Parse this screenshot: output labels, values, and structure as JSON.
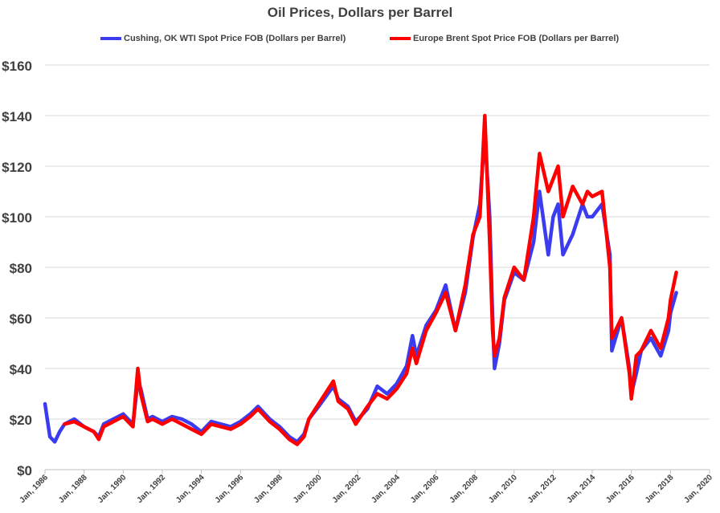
{
  "chart_data": {
    "type": "line",
    "title": "Oil Prices, Dollars per Barrel",
    "xlabel": "",
    "ylabel": "",
    "ylim": [
      0,
      160
    ],
    "y_ticks": [
      0,
      20,
      40,
      60,
      80,
      100,
      120,
      140,
      160
    ],
    "y_tick_labels": [
      "$0",
      "$20",
      "$40",
      "$60",
      "$80",
      "$100",
      "$120",
      "$140",
      "$160"
    ],
    "xlim": [
      1986,
      2020
    ],
    "x_ticks": [
      1986,
      1988,
      1990,
      1992,
      1994,
      1996,
      1998,
      2000,
      2002,
      2004,
      2006,
      2008,
      2010,
      2012,
      2014,
      2016,
      2018,
      2020
    ],
    "x_tick_labels": [
      "Jan, 1986",
      "Jan, 1988",
      "Jan, 1990",
      "Jan, 1992",
      "Jan, 1994",
      "Jan, 1996",
      "Jan, 1998",
      "Jan, 2000",
      "Jan, 2002",
      "Jan, 2004",
      "Jan, 2006",
      "Jan, 2008",
      "Jan, 2010",
      "Jan, 2012",
      "Jan, 2014",
      "Jan, 2016",
      "Jan, 2018",
      "Jan, 2020"
    ],
    "grid": "horizontal",
    "legend_position": "top",
    "series": [
      {
        "name": "Cushing, OK WTI Spot Price FOB (Dollars per Barrel)",
        "color": "#3b3bf0",
        "x": [
          1986.0,
          1986.25,
          1986.5,
          1986.75,
          1987.0,
          1987.5,
          1988.0,
          1988.5,
          1988.75,
          1989.0,
          1989.5,
          1990.0,
          1990.5,
          1990.75,
          1990.9,
          1991.25,
          1991.5,
          1992.0,
          1992.5,
          1993.0,
          1993.5,
          1994.0,
          1994.5,
          1995.0,
          1995.5,
          1996.0,
          1996.5,
          1996.9,
          1997.5,
          1998.0,
          1998.5,
          1998.9,
          1999.25,
          1999.5,
          2000.0,
          2000.75,
          2001.0,
          2001.5,
          2001.9,
          2002.5,
          2003.0,
          2003.5,
          2004.0,
          2004.5,
          2004.8,
          2005.0,
          2005.5,
          2006.0,
          2006.5,
          2007.0,
          2007.5,
          2007.9,
          2008.25,
          2008.5,
          2008.75,
          2008.9,
          2009.0,
          2009.25,
          2009.5,
          2010.0,
          2010.5,
          2011.0,
          2011.3,
          2011.75,
          2012.0,
          2012.25,
          2012.5,
          2013.0,
          2013.5,
          2013.75,
          2014.0,
          2014.5,
          2014.9,
          2015.0,
          2015.5,
          2015.9,
          2016.0,
          2016.25,
          2016.5,
          2017.0,
          2017.5,
          2017.9,
          2018.0,
          2018.3
        ],
        "y": [
          26,
          13,
          11,
          15,
          18,
          20,
          17,
          15,
          13,
          18,
          20,
          22,
          18,
          35,
          32,
          20,
          21,
          19,
          21,
          20,
          18,
          15,
          19,
          18,
          17,
          19,
          22,
          25,
          20,
          17,
          13,
          11,
          14,
          20,
          25,
          33,
          28,
          25,
          19,
          24,
          33,
          30,
          34,
          41,
          53,
          45,
          57,
          63,
          73,
          55,
          70,
          92,
          105,
          133,
          100,
          60,
          40,
          50,
          67,
          78,
          75,
          90,
          110,
          85,
          100,
          105,
          85,
          93,
          105,
          100,
          100,
          105,
          85,
          47,
          60,
          40,
          30,
          38,
          47,
          52,
          45,
          55,
          62,
          70
        ]
      },
      {
        "name": "Europe Brent Spot Price FOB (Dollars per Barrel)",
        "color": "#ff0000",
        "x": [
          1987.0,
          1987.5,
          1988.0,
          1988.5,
          1988.75,
          1989.0,
          1989.5,
          1990.0,
          1990.5,
          1990.75,
          1990.9,
          1991.25,
          1991.5,
          1992.0,
          1992.5,
          1993.0,
          1993.5,
          1994.0,
          1994.5,
          1995.0,
          1995.5,
          1996.0,
          1996.5,
          1996.9,
          1997.5,
          1998.0,
          1998.5,
          1998.9,
          1999.25,
          1999.5,
          2000.0,
          2000.75,
          2001.0,
          2001.5,
          2001.9,
          2002.5,
          2003.0,
          2003.5,
          2004.0,
          2004.5,
          2004.8,
          2005.0,
          2005.5,
          2006.0,
          2006.5,
          2007.0,
          2007.5,
          2007.9,
          2008.25,
          2008.5,
          2008.75,
          2008.9,
          2009.0,
          2009.25,
          2009.5,
          2010.0,
          2010.5,
          2011.0,
          2011.3,
          2011.75,
          2012.0,
          2012.25,
          2012.5,
          2013.0,
          2013.5,
          2013.75,
          2014.0,
          2014.5,
          2014.9,
          2015.0,
          2015.5,
          2015.9,
          2016.0,
          2016.25,
          2016.5,
          2017.0,
          2017.5,
          2017.9,
          2018.0,
          2018.3
        ],
        "y": [
          18,
          19,
          17,
          15,
          12,
          17,
          19,
          21,
          17,
          40,
          30,
          19,
          20,
          18,
          20,
          18,
          16,
          14,
          18,
          17,
          16,
          18,
          21,
          24,
          19,
          16,
          12,
          10,
          13,
          20,
          26,
          35,
          27,
          24,
          18,
          25,
          30,
          28,
          32,
          38,
          48,
          42,
          55,
          62,
          70,
          55,
          73,
          93,
          100,
          140,
          90,
          55,
          45,
          52,
          68,
          80,
          75,
          100,
          125,
          110,
          115,
          120,
          100,
          112,
          105,
          110,
          108,
          110,
          80,
          52,
          60,
          38,
          28,
          45,
          47,
          55,
          48,
          60,
          67,
          78
        ]
      }
    ]
  }
}
